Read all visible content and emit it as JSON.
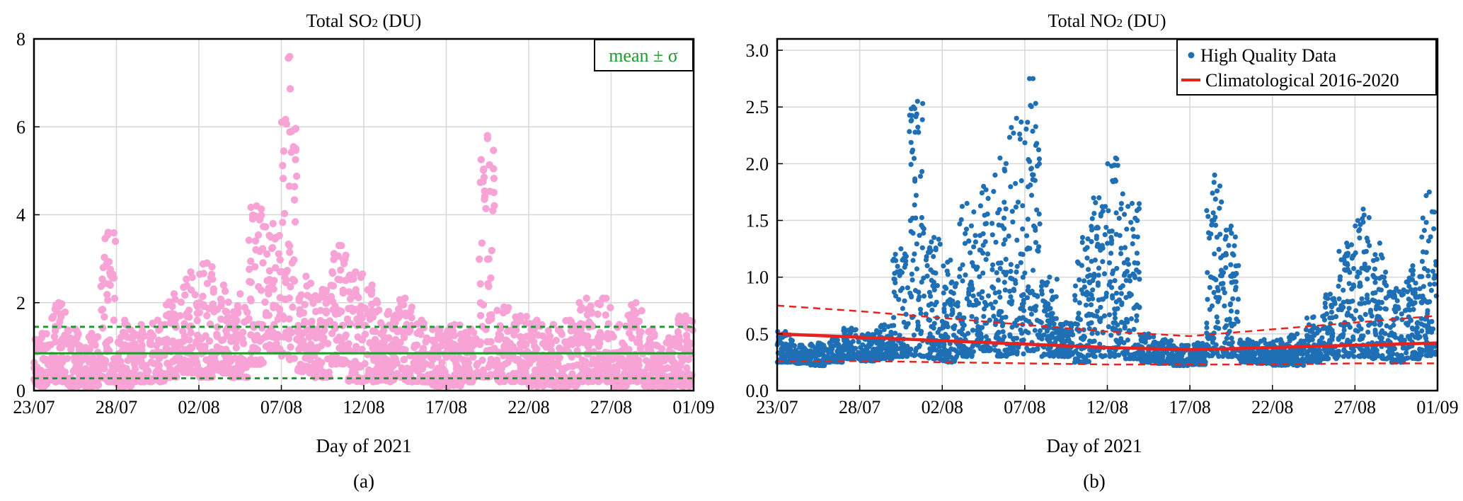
{
  "colors": {
    "so2_points": "#f7a3d6",
    "so2_stats": "#1f9a2e",
    "no2_points": "#1f6fb5",
    "no2_clim": "#e8231f",
    "grid": "#d7d7d7",
    "axis": "#000000"
  },
  "chart_data": [
    {
      "type": "scatter",
      "panel_label": "(a)",
      "title_main": "Total SO",
      "title_sub": "2",
      "title_tail": " (DU)",
      "xlabel": "Day of 2021",
      "ylabel": "",
      "x_ticks": [
        "23/07",
        "28/07",
        "02/08",
        "07/08",
        "12/08",
        "17/08",
        "22/08",
        "27/08",
        "01/09"
      ],
      "x_range": [
        "2021-07-23",
        "2021-09-01"
      ],
      "y_ticks": [
        0,
        2,
        4,
        6,
        8
      ],
      "ylim": [
        0,
        8
      ],
      "grid": true,
      "legend": {
        "position": "top-right",
        "entries": [
          "mean ± σ"
        ]
      },
      "series": [
        {
          "role": "hourly observations",
          "points_by_day": [
            {
              "date": "2021-07-23",
              "low": 0.1,
              "high": 1.3
            },
            {
              "date": "2021-07-24",
              "low": 0.2,
              "high": 2.0
            },
            {
              "date": "2021-07-25",
              "low": 0.1,
              "high": 1.4
            },
            {
              "date": "2021-07-26",
              "low": 0.1,
              "high": 1.3
            },
            {
              "date": "2021-07-27",
              "low": 0.2,
              "high": 3.6
            },
            {
              "date": "2021-07-28",
              "low": 0.1,
              "high": 1.6
            },
            {
              "date": "2021-07-29",
              "low": 0.2,
              "high": 1.5
            },
            {
              "date": "2021-07-30",
              "low": 0.2,
              "high": 1.6
            },
            {
              "date": "2021-07-31",
              "low": 0.3,
              "high": 2.2
            },
            {
              "date": "2021-08-01",
              "low": 0.4,
              "high": 2.7
            },
            {
              "date": "2021-08-02",
              "low": 0.3,
              "high": 2.9
            },
            {
              "date": "2021-08-03",
              "low": 0.4,
              "high": 2.4
            },
            {
              "date": "2021-08-04",
              "low": 0.3,
              "high": 2.2
            },
            {
              "date": "2021-08-05",
              "low": 0.6,
              "high": 4.2
            },
            {
              "date": "2021-08-06",
              "low": 0.9,
              "high": 3.8
            },
            {
              "date": "2021-08-07",
              "low": 0.7,
              "high": 7.6
            },
            {
              "date": "2021-08-08",
              "low": 0.4,
              "high": 2.6
            },
            {
              "date": "2021-08-09",
              "low": 0.3,
              "high": 2.3
            },
            {
              "date": "2021-08-10",
              "low": 0.6,
              "high": 3.3
            },
            {
              "date": "2021-08-11",
              "low": 0.2,
              "high": 2.7
            },
            {
              "date": "2021-08-12",
              "low": 0.2,
              "high": 2.4
            },
            {
              "date": "2021-08-13",
              "low": 0.2,
              "high": 1.8
            },
            {
              "date": "2021-08-14",
              "low": 0.2,
              "high": 2.1
            },
            {
              "date": "2021-08-15",
              "low": 0.2,
              "high": 1.6
            },
            {
              "date": "2021-08-16",
              "low": 0.1,
              "high": 1.4
            },
            {
              "date": "2021-08-17",
              "low": 0.1,
              "high": 1.5
            },
            {
              "date": "2021-08-18",
              "low": 0.2,
              "high": 1.4
            },
            {
              "date": "2021-08-19",
              "low": 0.3,
              "high": 5.8
            },
            {
              "date": "2021-08-20",
              "low": 0.2,
              "high": 1.9
            },
            {
              "date": "2021-08-21",
              "low": 0.2,
              "high": 1.7
            },
            {
              "date": "2021-08-22",
              "low": 0.1,
              "high": 1.6
            },
            {
              "date": "2021-08-23",
              "low": 0.1,
              "high": 1.5
            },
            {
              "date": "2021-08-24",
              "low": 0.1,
              "high": 1.6
            },
            {
              "date": "2021-08-25",
              "low": 0.2,
              "high": 2.1
            },
            {
              "date": "2021-08-26",
              "low": 0.2,
              "high": 2.1
            },
            {
              "date": "2021-08-27",
              "low": 0.1,
              "high": 1.5
            },
            {
              "date": "2021-08-28",
              "low": 0.2,
              "high": 2.0
            },
            {
              "date": "2021-08-29",
              "low": 0.1,
              "high": 1.4
            },
            {
              "date": "2021-08-30",
              "low": 0.1,
              "high": 1.2
            },
            {
              "date": "2021-08-31",
              "low": 0.1,
              "high": 1.7
            }
          ]
        }
      ],
      "reference_lines": {
        "mean": 0.85,
        "upper": 1.45,
        "lower": 0.28
      }
    },
    {
      "type": "scatter",
      "panel_label": "(b)",
      "title_main": "Total NO",
      "title_sub": "2",
      "title_tail": " (DU)",
      "xlabel": "Day of 2021",
      "ylabel": "",
      "x_ticks": [
        "23/07",
        "28/07",
        "02/08",
        "07/08",
        "12/08",
        "17/08",
        "22/08",
        "27/08",
        "01/09"
      ],
      "x_range": [
        "2021-07-23",
        "2021-09-01"
      ],
      "y_ticks": [
        "0.0",
        "0.5",
        "1.0",
        "1.5",
        "2.0",
        "2.5",
        "3.0"
      ],
      "ylim": [
        0,
        3.1
      ],
      "grid": true,
      "legend": {
        "position": "top-right",
        "entries": [
          "High Quality Data",
          "Climatological 2016-2020"
        ]
      },
      "series": [
        {
          "name": "High Quality Data",
          "points_by_day": [
            {
              "date": "2021-07-23",
              "low": 0.25,
              "high": 0.52
            },
            {
              "date": "2021-07-24",
              "low": 0.24,
              "high": 0.4
            },
            {
              "date": "2021-07-25",
              "low": 0.22,
              "high": 0.42
            },
            {
              "date": "2021-07-26",
              "low": 0.25,
              "high": 0.45
            },
            {
              "date": "2021-07-27",
              "low": 0.28,
              "high": 0.55
            },
            {
              "date": "2021-07-28",
              "low": 0.26,
              "high": 0.5
            },
            {
              "date": "2021-07-29",
              "low": 0.28,
              "high": 0.58
            },
            {
              "date": "2021-07-30",
              "low": 0.3,
              "high": 1.25
            },
            {
              "date": "2021-07-31",
              "low": 0.3,
              "high": 2.55
            },
            {
              "date": "2021-08-01",
              "low": 0.28,
              "high": 1.35
            },
            {
              "date": "2021-08-02",
              "low": 0.25,
              "high": 1.15
            },
            {
              "date": "2021-08-03",
              "low": 0.3,
              "high": 1.65
            },
            {
              "date": "2021-08-04",
              "low": 0.35,
              "high": 1.8
            },
            {
              "date": "2021-08-05",
              "low": 0.3,
              "high": 2.05
            },
            {
              "date": "2021-08-06",
              "low": 0.32,
              "high": 2.4
            },
            {
              "date": "2021-08-07",
              "low": 0.35,
              "high": 2.75
            },
            {
              "date": "2021-08-08",
              "low": 0.3,
              "high": 1.0
            },
            {
              "date": "2021-08-09",
              "low": 0.3,
              "high": 0.6
            },
            {
              "date": "2021-08-10",
              "low": 0.25,
              "high": 1.35
            },
            {
              "date": "2021-08-11",
              "low": 0.3,
              "high": 1.7
            },
            {
              "date": "2021-08-12",
              "low": 0.3,
              "high": 2.05
            },
            {
              "date": "2021-08-13",
              "low": 0.28,
              "high": 1.65
            },
            {
              "date": "2021-08-14",
              "low": 0.25,
              "high": 0.5
            },
            {
              "date": "2021-08-15",
              "low": 0.24,
              "high": 0.45
            },
            {
              "date": "2021-08-16",
              "low": 0.22,
              "high": 0.4
            },
            {
              "date": "2021-08-17",
              "low": 0.23,
              "high": 0.42
            },
            {
              "date": "2021-08-18",
              "low": 0.3,
              "high": 1.9
            },
            {
              "date": "2021-08-19",
              "low": 0.3,
              "high": 1.45
            },
            {
              "date": "2021-08-20",
              "low": 0.25,
              "high": 0.45
            },
            {
              "date": "2021-08-21",
              "low": 0.24,
              "high": 0.45
            },
            {
              "date": "2021-08-22",
              "low": 0.22,
              "high": 0.45
            },
            {
              "date": "2021-08-23",
              "low": 0.22,
              "high": 0.5
            },
            {
              "date": "2021-08-24",
              "low": 0.25,
              "high": 0.65
            },
            {
              "date": "2021-08-25",
              "low": 0.28,
              "high": 0.85
            },
            {
              "date": "2021-08-26",
              "low": 0.3,
              "high": 1.3
            },
            {
              "date": "2021-08-27",
              "low": 0.3,
              "high": 1.6
            },
            {
              "date": "2021-08-28",
              "low": 0.28,
              "high": 1.3
            },
            {
              "date": "2021-08-29",
              "low": 0.25,
              "high": 0.9
            },
            {
              "date": "2021-08-30",
              "low": 0.28,
              "high": 1.1
            },
            {
              "date": "2021-08-31",
              "low": 0.3,
              "high": 1.75
            }
          ]
        },
        {
          "name": "Climatological 2016-2020",
          "dates": [
            "2021-07-23",
            "2021-07-28",
            "2021-08-02",
            "2021-08-07",
            "2021-08-12",
            "2021-08-17",
            "2021-08-22",
            "2021-08-27",
            "2021-09-01"
          ],
          "values": [
            0.5,
            0.47,
            0.44,
            0.41,
            0.38,
            0.36,
            0.38,
            0.4,
            0.42
          ],
          "upper": [
            0.75,
            0.7,
            0.64,
            0.58,
            0.52,
            0.48,
            0.54,
            0.6,
            0.66
          ],
          "lower": [
            0.26,
            0.26,
            0.25,
            0.24,
            0.23,
            0.23,
            0.23,
            0.24,
            0.24
          ]
        }
      ]
    }
  ]
}
